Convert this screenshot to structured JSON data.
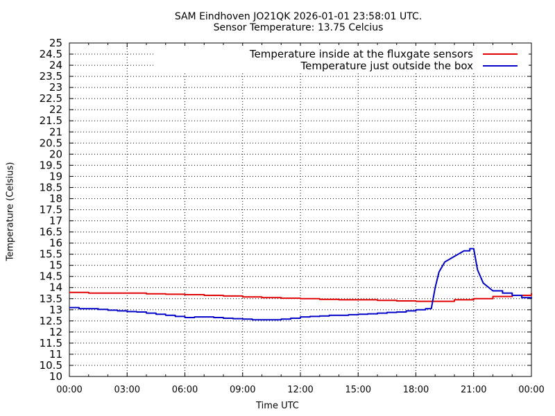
{
  "chart_data": {
    "type": "line",
    "title": "SAM Eindhoven JO21QK 2026-01-01 23:58:01 UTC.",
    "subtitle": "Sensor Temperature: 13.75 Celcius",
    "xlabel": "Time UTC",
    "ylabel": "Temperature (Celsius)",
    "xlim": [
      0,
      24
    ],
    "ylim": [
      10,
      25
    ],
    "x_ticks": [
      "00:00",
      "03:00",
      "06:00",
      "09:00",
      "12:00",
      "15:00",
      "18:00",
      "21:00",
      "00:00"
    ],
    "y_ticks": [
      "10",
      "10.5",
      "11",
      "11.5",
      "12",
      "12.5",
      "13",
      "13.5",
      "14",
      "14.5",
      "15",
      "15.5",
      "16",
      "16.5",
      "17",
      "17.5",
      "18",
      "18.5",
      "19",
      "19.5",
      "20",
      "20.5",
      "21",
      "21.5",
      "22",
      "22.5",
      "23",
      "23.5",
      "24",
      "24.5",
      "25"
    ],
    "grid": true,
    "legend_position": "top-right",
    "series": [
      {
        "name": "Temperature inside at the fluxgate sensors",
        "color": "#e00000",
        "x": [
          0,
          1,
          2,
          3,
          4,
          5,
          6,
          7,
          8,
          9,
          10,
          11,
          12,
          13,
          14,
          15,
          16,
          17,
          18,
          19,
          20,
          21,
          22,
          23,
          24
        ],
        "y": [
          13.78,
          13.75,
          13.75,
          13.75,
          13.72,
          13.7,
          13.68,
          13.65,
          13.62,
          13.58,
          13.55,
          13.52,
          13.5,
          13.47,
          13.45,
          13.45,
          13.42,
          13.4,
          13.38,
          13.38,
          13.45,
          13.5,
          13.6,
          13.65,
          13.75
        ]
      },
      {
        "name": "Temperature just outside the box",
        "color": "#0000c8",
        "x": [
          0,
          0.5,
          1,
          1.5,
          2,
          2.5,
          3,
          3.5,
          4,
          4.5,
          5,
          5.5,
          6,
          6.5,
          7,
          7.5,
          8,
          8.5,
          9,
          9.5,
          10,
          10.5,
          11,
          11.5,
          12,
          12.5,
          13,
          13.5,
          14,
          14.5,
          15,
          15.5,
          16,
          16.5,
          17,
          17.5,
          18,
          18.5,
          18.8,
          19,
          19.2,
          19.5,
          20,
          20.5,
          20.8,
          21,
          21.2,
          21.5,
          22,
          22.5,
          23,
          23.5,
          24
        ],
        "y": [
          13.1,
          13.05,
          13.05,
          13.02,
          12.98,
          12.95,
          12.92,
          12.9,
          12.85,
          12.8,
          12.75,
          12.7,
          12.65,
          12.68,
          12.68,
          12.65,
          12.62,
          12.6,
          12.58,
          12.55,
          12.55,
          12.55,
          12.58,
          12.62,
          12.68,
          12.7,
          12.72,
          12.75,
          12.75,
          12.78,
          12.8,
          12.82,
          12.85,
          12.88,
          12.9,
          12.95,
          13.0,
          13.05,
          13.05,
          14.0,
          14.7,
          15.15,
          15.4,
          15.65,
          15.75,
          15.75,
          14.8,
          14.2,
          13.85,
          13.75,
          13.65,
          13.55,
          13.5
        ]
      }
    ]
  }
}
